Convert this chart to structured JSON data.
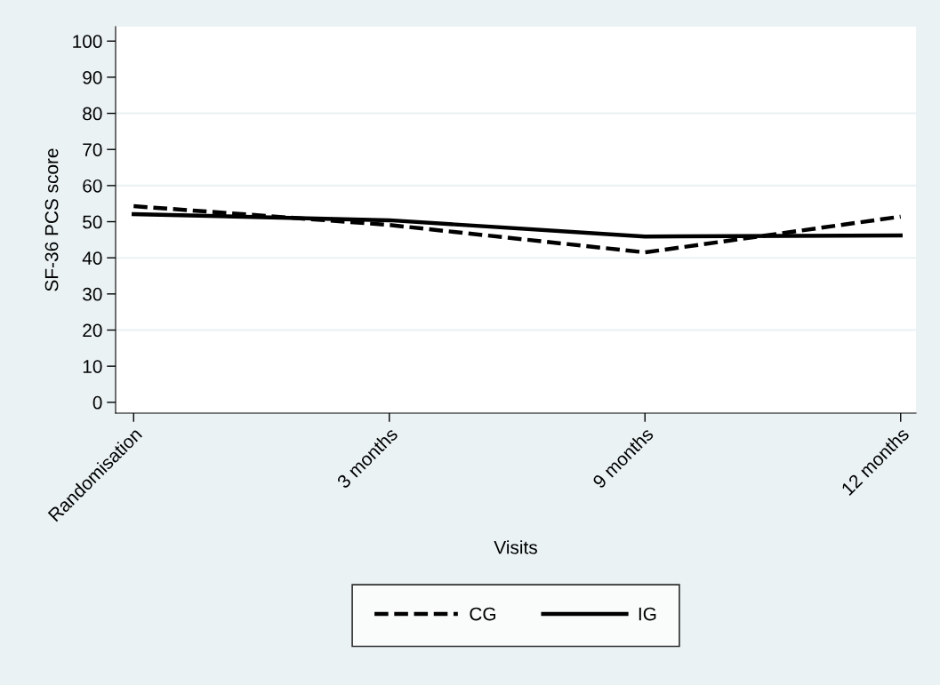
{
  "chart_data": {
    "type": "line",
    "xlabel": "Visits",
    "ylabel": "SF-36 PCS score",
    "categories": [
      "Randomisation",
      "3 months",
      "9 months",
      "12 months"
    ],
    "series": [
      {
        "name": "CG",
        "color": "#000000",
        "line_style": "dashed",
        "values": [
          54.3,
          49.1,
          41.5,
          51.4
        ]
      },
      {
        "name": "IG",
        "color": "#000000",
        "line_style": "solid",
        "values": [
          52.1,
          50.4,
          45.9,
          46.2
        ]
      }
    ],
    "ylim": [
      -3,
      104
    ],
    "yticks": [
      0,
      10,
      20,
      30,
      40,
      50,
      60,
      70,
      80,
      90,
      100
    ],
    "grid": "y",
    "legend": "bottom",
    "marker": "none"
  }
}
